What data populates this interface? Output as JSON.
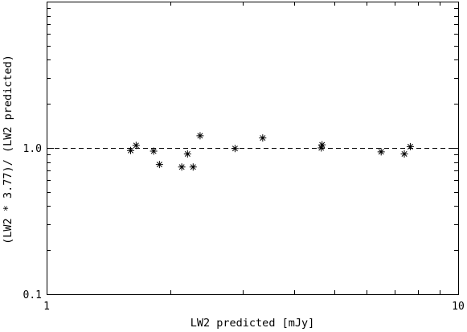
{
  "chart_data": {
    "type": "scatter",
    "xlabel": "LW2 predicted [mJy]",
    "ylabel": "(LW2 * 3.77)/ (LW2 predicted)",
    "x_scale": "log",
    "y_scale": "log",
    "xlim": [
      1,
      10
    ],
    "ylim": [
      0.1,
      10
    ],
    "x_tick_labels": [
      {
        "value": 1,
        "label": "1"
      },
      {
        "value": 10,
        "label": "10"
      }
    ],
    "y_tick_labels": [
      {
        "value": 0.1,
        "label": "0.1"
      },
      {
        "value": 1.0,
        "label": "1.0"
      }
    ],
    "reference_line": {
      "y": 1.0,
      "style": "dashed"
    },
    "marker": "asterisk",
    "grid": false,
    "points": [
      {
        "x": 1.6,
        "y": 0.96
      },
      {
        "x": 1.65,
        "y": 1.04
      },
      {
        "x": 1.82,
        "y": 0.95
      },
      {
        "x": 1.88,
        "y": 0.77
      },
      {
        "x": 2.13,
        "y": 0.74
      },
      {
        "x": 2.2,
        "y": 0.91
      },
      {
        "x": 2.27,
        "y": 0.74
      },
      {
        "x": 2.36,
        "y": 1.21
      },
      {
        "x": 2.87,
        "y": 0.99
      },
      {
        "x": 3.35,
        "y": 1.17
      },
      {
        "x": 4.65,
        "y": 1.0
      },
      {
        "x": 4.67,
        "y": 1.05
      },
      {
        "x": 6.5,
        "y": 0.94
      },
      {
        "x": 7.4,
        "y": 0.91
      },
      {
        "x": 7.65,
        "y": 1.02
      }
    ]
  }
}
